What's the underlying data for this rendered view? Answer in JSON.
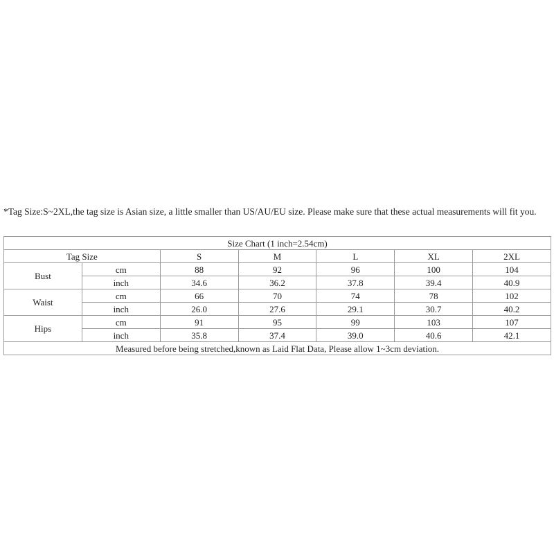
{
  "note": "*Tag Size:S~2XL,the tag size is Asian size, a little smaller than US/AU/EU size. Please make sure that these actual measurements will fit you.",
  "table": {
    "title": "Size Chart (1 inch=2.54cm)",
    "header_label": "Tag Size",
    "sizes": [
      "S",
      "M",
      "L",
      "XL",
      "2XL"
    ],
    "measurements": [
      {
        "name": "Bust",
        "rows": [
          {
            "unit": "cm",
            "values": [
              "88",
              "92",
              "96",
              "100",
              "104"
            ]
          },
          {
            "unit": "inch",
            "values": [
              "34.6",
              "36.2",
              "37.8",
              "39.4",
              "40.9"
            ]
          }
        ]
      },
      {
        "name": "Waist",
        "rows": [
          {
            "unit": "cm",
            "values": [
              "66",
              "70",
              "74",
              "78",
              "102"
            ]
          },
          {
            "unit": "inch",
            "values": [
              "26.0",
              "27.6",
              "29.1",
              "30.7",
              "40.2"
            ]
          }
        ]
      },
      {
        "name": "Hips",
        "rows": [
          {
            "unit": "cm",
            "values": [
              "91",
              "95",
              "99",
              "103",
              "107"
            ]
          },
          {
            "unit": "inch",
            "values": [
              "35.8",
              "37.4",
              "39.0",
              "40.6",
              "42.1"
            ]
          }
        ]
      }
    ],
    "footer": "Measured before being stretched,known as Laid Flat Data, Please allow 1~3cm deviation."
  }
}
